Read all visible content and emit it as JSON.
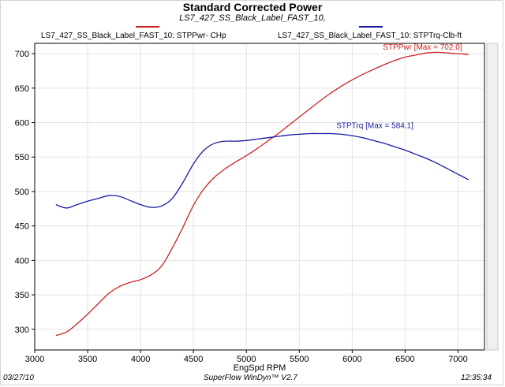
{
  "header": {
    "title": "Standard Corrected Power",
    "subtitle": "LS7_427_SS_Black_Label_FAST_10,"
  },
  "legend": [
    {
      "label": "LS7_427_SS_Black_Label_FAST_10: STPPwr- CHp",
      "color": "#cc2222"
    },
    {
      "label": "LS7_427_SS_Black_Label_FAST_10: STPTrq-Clb-ft",
      "color": "#1a1aa6"
    }
  ],
  "footer": {
    "date": "03/27/10",
    "software": "SuperFlow WinDyn™ V2.7",
    "time": "12:35:34"
  },
  "chart_data": {
    "type": "line",
    "title": "Standard Corrected Power",
    "xlabel": "EngSpd  RPM",
    "xlim": [
      3000,
      7250
    ],
    "ylim": [
      270,
      715
    ],
    "x_ticks": [
      "3000",
      "3500",
      "4000",
      "4500",
      "5000",
      "5500",
      "6000",
      "6500",
      "7000"
    ],
    "y_ticks": [
      "300",
      "350",
      "400",
      "450",
      "500",
      "550",
      "600",
      "650",
      "700"
    ],
    "grid": true,
    "series": [
      {
        "name": "STPPwr",
        "label": "LS7_427_SS_Black_Label_FAST_10: STPPwr- CHp",
        "color": "#cc2222",
        "annotation": "STPPwr [Max = 702.0]",
        "x": [
          3200,
          3300,
          3400,
          3500,
          3600,
          3700,
          3800,
          3900,
          4000,
          4100,
          4200,
          4300,
          4400,
          4500,
          4600,
          4700,
          4800,
          4900,
          5000,
          5100,
          5200,
          5300,
          5400,
          5500,
          5600,
          5700,
          5800,
          5900,
          6000,
          6100,
          6200,
          6300,
          6400,
          6500,
          6600,
          6700,
          6800,
          6900,
          7000,
          7100
        ],
        "values": [
          291,
          296,
          308,
          322,
          337,
          352,
          362,
          368,
          372,
          379,
          392,
          418,
          448,
          480,
          504,
          521,
          533,
          543,
          552,
          562,
          573,
          584,
          596,
          608,
          620,
          632,
          643,
          653,
          662,
          670,
          677,
          684,
          690,
          695,
          698,
          701,
          702,
          701,
          700,
          699
        ]
      },
      {
        "name": "STPTrq",
        "label": "LS7_427_SS_Black_Label_FAST_10: STPTrq-Clb-ft",
        "color": "#1a1aa6",
        "annotation": "STPTrq [Max = 584.1]",
        "x": [
          3200,
          3300,
          3400,
          3500,
          3600,
          3700,
          3800,
          3900,
          4000,
          4100,
          4200,
          4300,
          4400,
          4500,
          4600,
          4700,
          4800,
          4900,
          5000,
          5100,
          5200,
          5300,
          5400,
          5500,
          5600,
          5700,
          5800,
          5900,
          6000,
          6100,
          6200,
          6300,
          6400,
          6500,
          6600,
          6700,
          6800,
          6900,
          7000,
          7100
        ],
        "values": [
          481,
          476,
          481,
          486,
          490,
          494,
          493,
          487,
          481,
          477,
          479,
          490,
          513,
          540,
          560,
          570,
          573,
          573,
          574,
          576,
          578,
          580,
          582,
          583,
          584,
          584,
          584,
          583,
          581,
          578,
          574,
          570,
          565,
          560,
          554,
          548,
          541,
          533,
          525,
          517
        ]
      }
    ]
  }
}
